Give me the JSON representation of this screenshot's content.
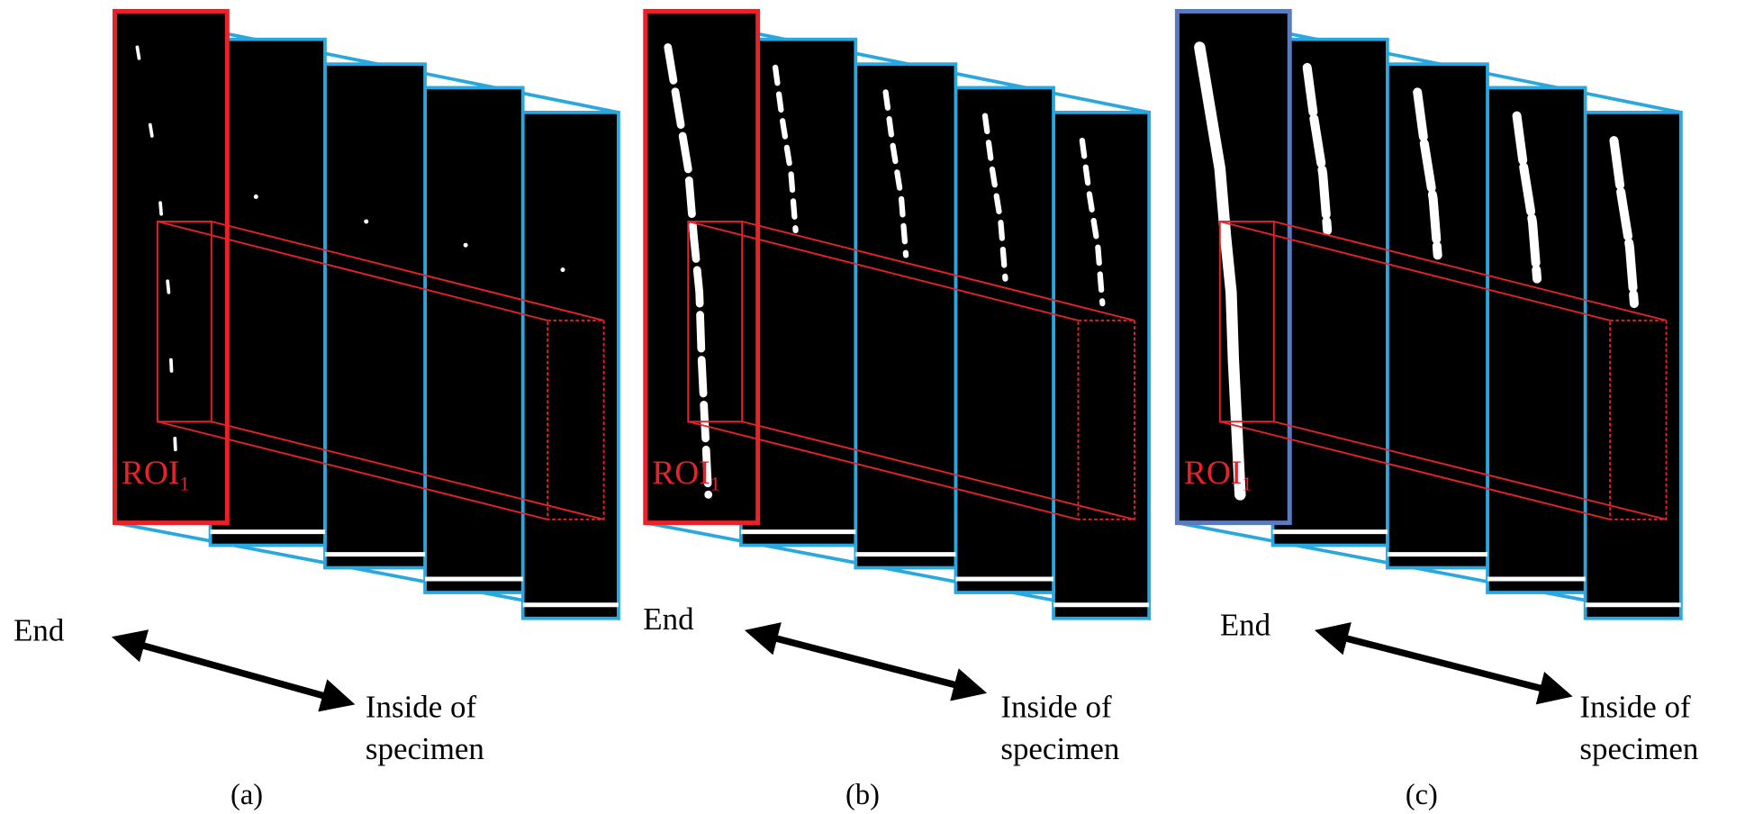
{
  "panels": [
    {
      "roi_label": "ROI",
      "roi_subscript": "1",
      "end_label": "End",
      "inside_label": [
        "Inside of",
        "specimen"
      ],
      "caption": "(a)"
    },
    {
      "roi_label": "ROI",
      "roi_subscript": "1",
      "end_label": "End",
      "inside_label": [
        "Inside of",
        "specimen"
      ],
      "caption": "(b)"
    },
    {
      "roi_label": "ROI",
      "roi_subscript": "1",
      "end_label": "End",
      "inside_label": [
        "Inside of",
        "specimen"
      ],
      "caption": "(c)"
    }
  ]
}
